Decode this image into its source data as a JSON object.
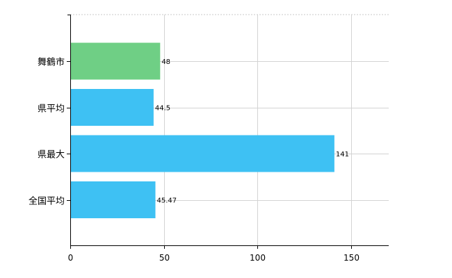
{
  "chart_data": {
    "type": "bar",
    "orientation": "horizontal",
    "categories": [
      "舞鶴市",
      "県平均",
      "県最大",
      "全国平均"
    ],
    "values": [
      48,
      44.5,
      141,
      45.47
    ],
    "data_labels": [
      "48",
      "44.5",
      "141",
      "45.47"
    ],
    "bar_colors": [
      "#6fcf85",
      "#3ec1f3",
      "#3ec1f3",
      "#3ec1f3"
    ],
    "xlim": [
      0,
      170
    ],
    "xticks": [
      0,
      50,
      100,
      150
    ],
    "xtick_labels": [
      "0",
      "50",
      "100",
      "150"
    ],
    "grid": true,
    "legend": "none",
    "title": "",
    "xlabel": "",
    "ylabel": ""
  }
}
